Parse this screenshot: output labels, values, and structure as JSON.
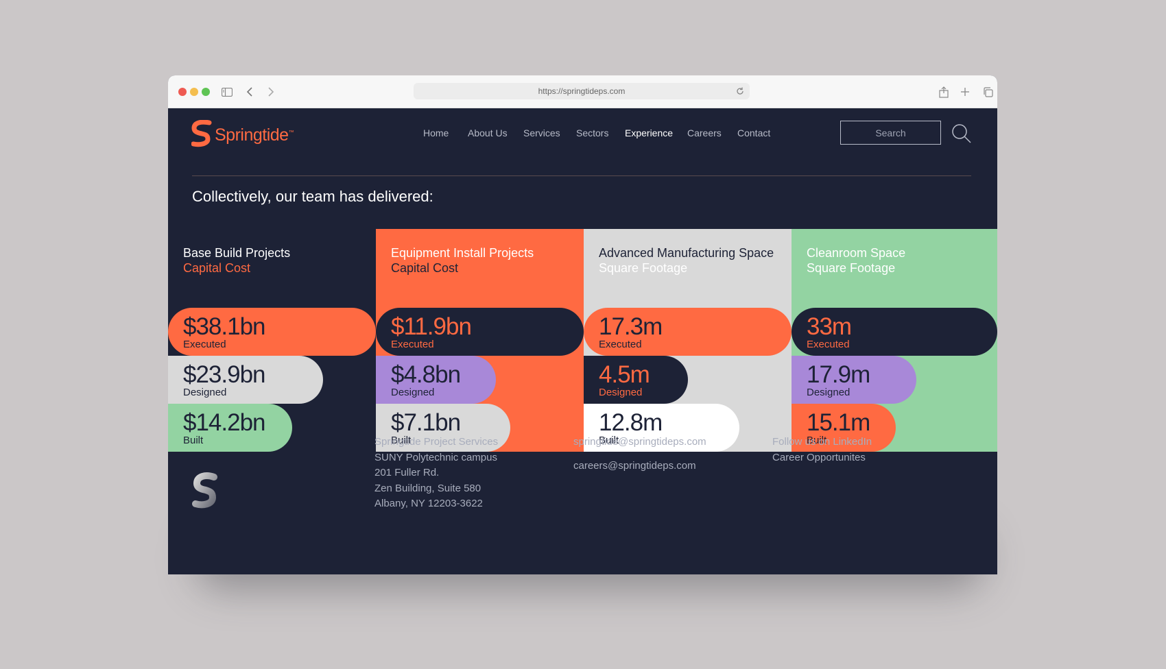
{
  "browser": {
    "url": "https://springtideps.com"
  },
  "brand": {
    "name": "Springtide",
    "tm": "™"
  },
  "nav": {
    "items": [
      "Home",
      "About Us",
      "Services",
      "Sectors",
      "Experience",
      "Careers",
      "Contact"
    ],
    "active": "Experience"
  },
  "search": {
    "placeholder": "Search"
  },
  "heading": "Collectively, our team has delivered:",
  "columns": [
    {
      "title": "Base Build Projects",
      "subtitle": "Capital Cost",
      "stats": [
        {
          "value": "$38.1bn",
          "label": "Executed"
        },
        {
          "value": "$23.9bn",
          "label": "Designed"
        },
        {
          "value": "$14.2bn",
          "label": "Built"
        }
      ]
    },
    {
      "title": "Equipment Install Projects",
      "subtitle": "Capital Cost",
      "stats": [
        {
          "value": "$11.9bn",
          "label": "Executed"
        },
        {
          "value": "$4.8bn",
          "label": "Designed"
        },
        {
          "value": "$7.1bn",
          "label": "Built"
        }
      ]
    },
    {
      "title": "Advanced Manufacturing Space",
      "subtitle": "Square Footage",
      "stats": [
        {
          "value": "17.3m",
          "label": "Executed"
        },
        {
          "value": "4.5m",
          "label": "Designed"
        },
        {
          "value": "12.8m",
          "label": "Built"
        }
      ]
    },
    {
      "title": "Cleanroom Space",
      "subtitle": "Square Footage",
      "stats": [
        {
          "value": "33m",
          "label": "Executed"
        },
        {
          "value": "17.9m",
          "label": "Designed"
        },
        {
          "value": "15.1m",
          "label": "Built"
        }
      ]
    }
  ],
  "footer": {
    "address": [
      "Springtide Project Services",
      "SUNY Polytechnic campus",
      "201 Fuller Rd.",
      "Zen Building, Suite 580",
      "Albany, NY 12203-3622"
    ],
    "emails": [
      "springtide@springtideps.com",
      "careers@springtideps.com"
    ],
    "links": [
      "Follow us on LinkedIn",
      "Career Opportunites"
    ]
  },
  "colors": {
    "navy": "#1d2236",
    "orange": "#ff6a42",
    "lightgray": "#d9d9d9",
    "mint": "#93d3a2",
    "purple": "#a888d8",
    "white": "#ffffff"
  }
}
